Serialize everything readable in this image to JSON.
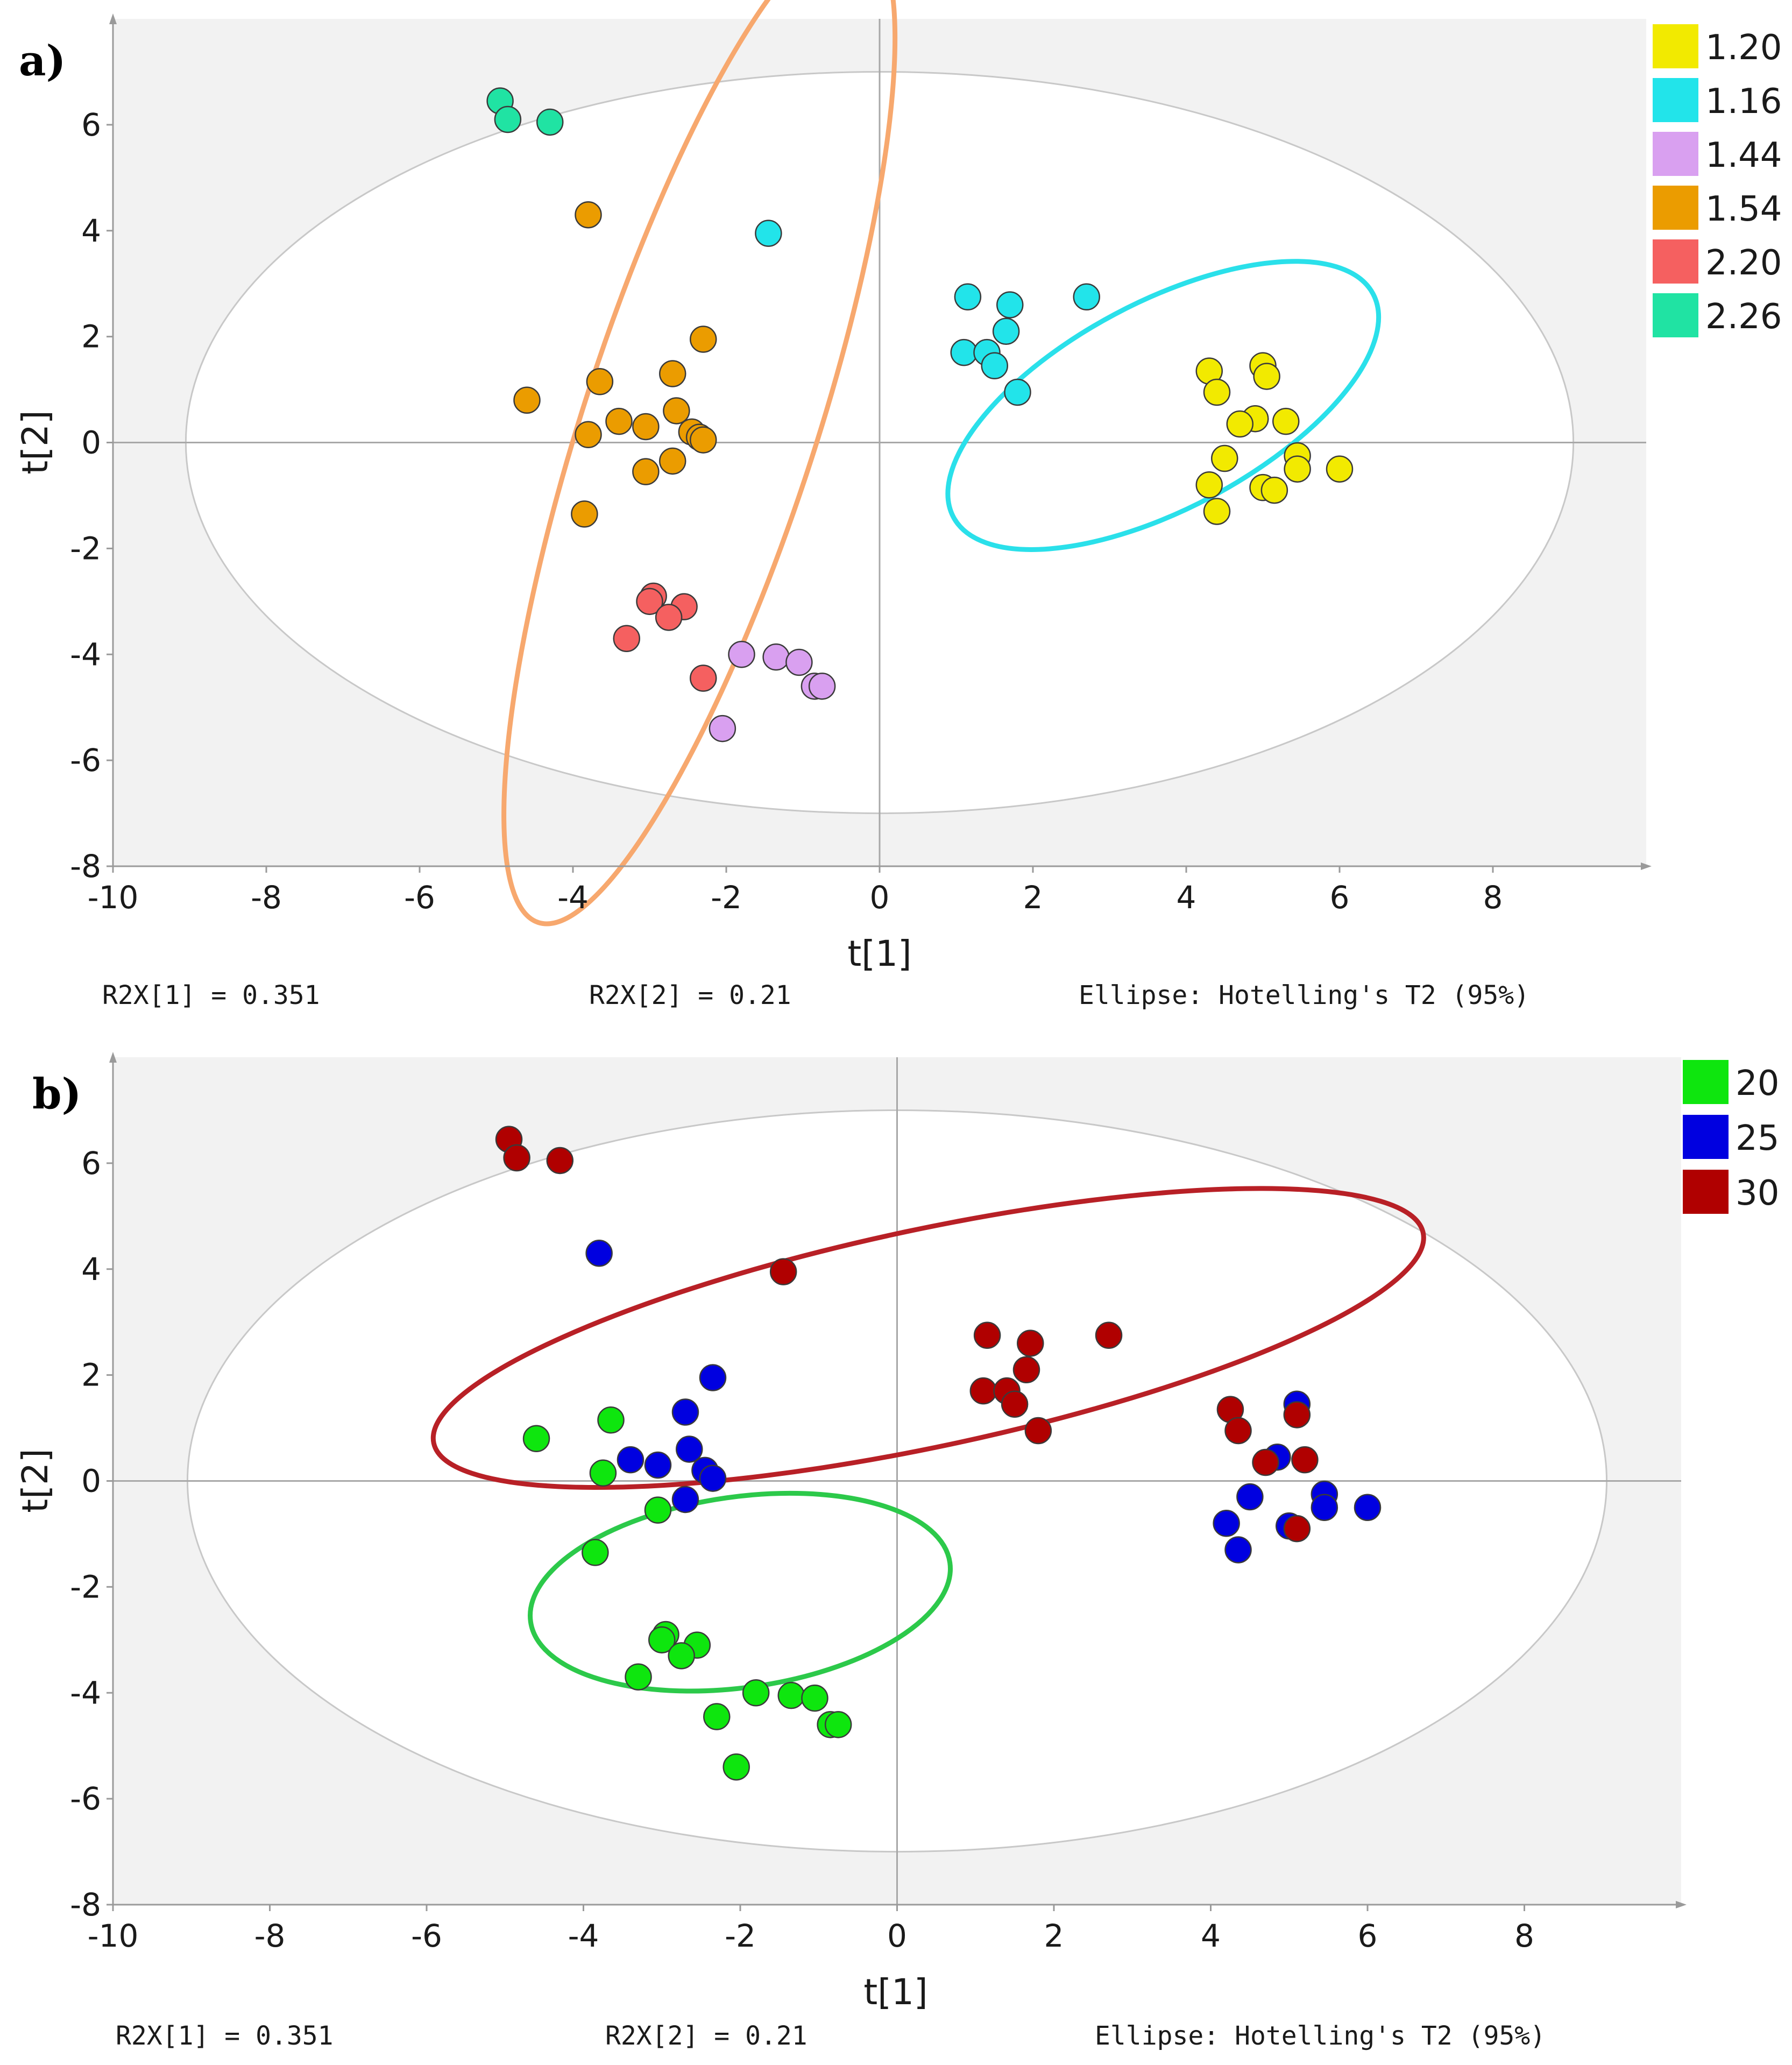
{
  "chart_data": [
    {
      "type": "scatter",
      "panel_label": "a)",
      "xlabel": "t[1]",
      "ylabel": "t[2]",
      "xlim": [
        -10,
        10
      ],
      "ylim": [
        -8,
        8
      ],
      "xticks": [
        "-10",
        "-8",
        "-6",
        "-4",
        "-2",
        "0",
        "2",
        "4",
        "6",
        "8"
      ],
      "yticks": [
        "-8",
        "-6",
        "-4",
        "-2",
        "0",
        "2",
        "4",
        "6"
      ],
      "stats": {
        "r2x1": "R2X[1] = 0.351",
        "r2x2": "R2X[2] = 0.21",
        "ellipse": "Ellipse: Hotelling's T2 (95%)"
      },
      "hotelling": {
        "cx": 0,
        "cy": 0,
        "rx": 9.05,
        "ry": 7.0
      },
      "legend": [
        {
          "label": "1.20",
          "color": "#f2ea00"
        },
        {
          "label": "1.16",
          "color": "#22e4ea"
        },
        {
          "label": "1.44",
          "color": "#d9a0f0"
        },
        {
          "label": "1.54",
          "color": "#eb9c00"
        },
        {
          "label": "2.20",
          "color": "#f56060"
        },
        {
          "label": "2.26",
          "color": "#20e3a3"
        }
      ],
      "group_ellipses": [
        {
          "color": "#f7a86e",
          "cx": -2.35,
          "cy": 0.3,
          "rx": 6.8,
          "ry": 2.2,
          "angle": -72
        },
        {
          "color": "#2ae0ea",
          "cx": 3.7,
          "cy": 0.7,
          "rx": 3.1,
          "ry": 1.95,
          "angle": -28
        }
      ],
      "series": [
        {
          "name": "1.20",
          "color": "#f2ea00",
          "points": [
            [
              4.3,
              1.35
            ],
            [
              4.4,
              0.95
            ],
            [
              5.0,
              1.45
            ],
            [
              5.05,
              1.25
            ],
            [
              4.9,
              0.45
            ],
            [
              4.7,
              0.35
            ],
            [
              5.3,
              0.4
            ],
            [
              4.5,
              -0.3
            ],
            [
              4.3,
              -0.8
            ],
            [
              4.4,
              -1.3
            ],
            [
              5.0,
              -0.85
            ],
            [
              5.15,
              -0.9
            ],
            [
              5.45,
              -0.25
            ],
            [
              5.45,
              -0.5
            ],
            [
              6.0,
              -0.5
            ]
          ]
        },
        {
          "name": "1.16",
          "color": "#22e4ea",
          "points": [
            [
              -1.45,
              3.95
            ],
            [
              1.15,
              2.75
            ],
            [
              1.7,
              2.6
            ],
            [
              2.7,
              2.75
            ],
            [
              1.65,
              2.1
            ],
            [
              1.1,
              1.7
            ],
            [
              1.4,
              1.7
            ],
            [
              1.5,
              1.45
            ],
            [
              1.8,
              0.95
            ]
          ]
        },
        {
          "name": "1.44",
          "color": "#d9a0f0",
          "points": [
            [
              -1.8,
              -4.0
            ],
            [
              -1.35,
              -4.05
            ],
            [
              -1.05,
              -4.15
            ],
            [
              -0.85,
              -4.6
            ],
            [
              -0.75,
              -4.6
            ],
            [
              -2.05,
              -5.4
            ]
          ]
        },
        {
          "name": "1.54",
          "color": "#eb9c00",
          "points": [
            [
              -3.8,
              4.3
            ],
            [
              -2.3,
              1.95
            ],
            [
              -2.7,
              1.3
            ],
            [
              -3.65,
              1.15
            ],
            [
              -4.6,
              0.8
            ],
            [
              -2.65,
              0.6
            ],
            [
              -3.4,
              0.4
            ],
            [
              -3.05,
              0.3
            ],
            [
              -3.8,
              0.15
            ],
            [
              -2.45,
              0.2
            ],
            [
              -2.35,
              0.1
            ],
            [
              -2.3,
              0.05
            ],
            [
              -3.05,
              -0.55
            ],
            [
              -2.7,
              -0.35
            ],
            [
              -3.85,
              -1.35
            ]
          ]
        },
        {
          "name": "2.20",
          "color": "#f56060",
          "points": [
            [
              -2.95,
              -2.9
            ],
            [
              -3.0,
              -3.0
            ],
            [
              -2.55,
              -3.1
            ],
            [
              -2.75,
              -3.3
            ],
            [
              -3.3,
              -3.7
            ],
            [
              -2.3,
              -4.45
            ]
          ]
        },
        {
          "name": "2.26",
          "color": "#20e3a3",
          "points": [
            [
              -4.95,
              6.45
            ],
            [
              -4.85,
              6.1
            ],
            [
              -4.3,
              6.05
            ]
          ]
        }
      ]
    },
    {
      "type": "scatter",
      "panel_label": "b)",
      "xlabel": "t[1]",
      "ylabel": "t[2]",
      "xlim": [
        -10,
        10
      ],
      "ylim": [
        -8,
        8
      ],
      "xticks": [
        "-10",
        "-8",
        "-6",
        "-4",
        "-2",
        "0",
        "2",
        "4",
        "6",
        "8"
      ],
      "yticks": [
        "-8",
        "-6",
        "-4",
        "-2",
        "0",
        "2",
        "4",
        "6"
      ],
      "stats": {
        "r2x1": "R2X[1] = 0.351",
        "r2x2": "R2X[2] = 0.21",
        "ellipse": "Ellipse: Hotelling's T2 (95%)"
      },
      "hotelling": {
        "cx": 0,
        "cy": 0,
        "rx": 9.05,
        "ry": 7.0
      },
      "legend": [
        {
          "label": "20",
          "color": "#0ee60e"
        },
        {
          "label": "25",
          "color": "#0000e0"
        },
        {
          "label": "30",
          "color": "#b00000"
        }
      ],
      "group_ellipses": [
        {
          "color": "#b82026",
          "cx": 0.4,
          "cy": 2.7,
          "rx": 6.45,
          "ry": 2.05,
          "angle": -12
        },
        {
          "color": "#2cc94a",
          "cx": -2.0,
          "cy": -2.1,
          "rx": 2.7,
          "ry": 1.8,
          "angle": -8
        }
      ],
      "series": [
        {
          "name": "20",
          "color": "#0ee60e",
          "points": [
            [
              -3.65,
              1.15
            ],
            [
              -4.6,
              0.8
            ],
            [
              -3.75,
              0.15
            ],
            [
              -3.05,
              -0.55
            ],
            [
              -3.85,
              -1.35
            ],
            [
              -2.95,
              -2.9
            ],
            [
              -3.0,
              -3.0
            ],
            [
              -2.55,
              -3.1
            ],
            [
              -2.75,
              -3.3
            ],
            [
              -3.3,
              -3.7
            ],
            [
              -1.8,
              -4.0
            ],
            [
              -1.35,
              -4.05
            ],
            [
              -1.05,
              -4.1
            ],
            [
              -2.3,
              -4.45
            ],
            [
              -0.85,
              -4.6
            ],
            [
              -0.75,
              -4.6
            ],
            [
              -2.05,
              -5.4
            ]
          ]
        },
        {
          "name": "25",
          "color": "#0000e0",
          "points": [
            [
              -3.8,
              4.3
            ],
            [
              -2.35,
              1.95
            ],
            [
              -2.7,
              1.3
            ],
            [
              -2.65,
              0.6
            ],
            [
              -3.4,
              0.4
            ],
            [
              -3.05,
              0.3
            ],
            [
              -2.45,
              0.2
            ],
            [
              -2.35,
              0.05
            ],
            [
              -2.7,
              -0.35
            ],
            [
              5.1,
              1.45
            ],
            [
              4.85,
              0.45
            ],
            [
              4.5,
              -0.3
            ],
            [
              4.2,
              -0.8
            ],
            [
              4.35,
              -1.3
            ],
            [
              5.45,
              -0.25
            ],
            [
              5.45,
              -0.5
            ],
            [
              5.0,
              -0.85
            ],
            [
              6.0,
              -0.5
            ]
          ]
        },
        {
          "name": "30",
          "color": "#b00000",
          "points": [
            [
              -4.95,
              6.45
            ],
            [
              -4.85,
              6.1
            ],
            [
              -4.3,
              6.05
            ],
            [
              -1.45,
              3.95
            ],
            [
              1.15,
              2.75
            ],
            [
              1.7,
              2.6
            ],
            [
              2.7,
              2.75
            ],
            [
              1.65,
              2.1
            ],
            [
              1.1,
              1.7
            ],
            [
              1.4,
              1.7
            ],
            [
              1.5,
              1.45
            ],
            [
              1.8,
              0.95
            ],
            [
              4.25,
              1.35
            ],
            [
              4.35,
              0.95
            ],
            [
              5.1,
              1.25
            ],
            [
              4.7,
              0.35
            ],
            [
              5.2,
              0.4
            ],
            [
              5.1,
              -0.9
            ]
          ]
        }
      ]
    }
  ]
}
